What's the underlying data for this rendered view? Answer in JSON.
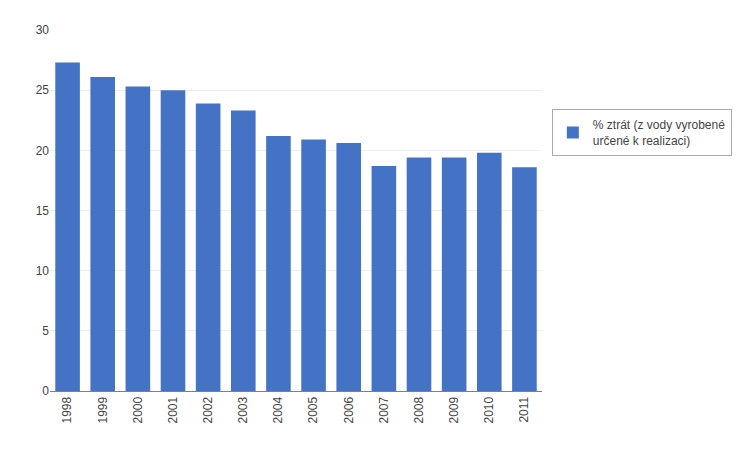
{
  "chart_data": {
    "type": "bar",
    "categories": [
      "1998",
      "1999",
      "2000",
      "2001",
      "2002",
      "2003",
      "2004",
      "2005",
      "2006",
      "2007",
      "2008",
      "2009",
      "2010",
      "2011"
    ],
    "series": [
      {
        "name": "% ztrát (z vody vyrobené\nurčené k realizaci)",
        "color": "#4472C4",
        "values": [
          27.3,
          26.1,
          25.3,
          25.0,
          23.9,
          23.3,
          21.2,
          20.9,
          20.6,
          18.7,
          19.4,
          19.4,
          19.8,
          18.6
        ]
      }
    ],
    "ylim": [
      0,
      30
    ],
    "yticks": [
      0,
      5,
      10,
      15,
      20,
      25,
      30
    ],
    "grid": true,
    "legend": "right"
  }
}
